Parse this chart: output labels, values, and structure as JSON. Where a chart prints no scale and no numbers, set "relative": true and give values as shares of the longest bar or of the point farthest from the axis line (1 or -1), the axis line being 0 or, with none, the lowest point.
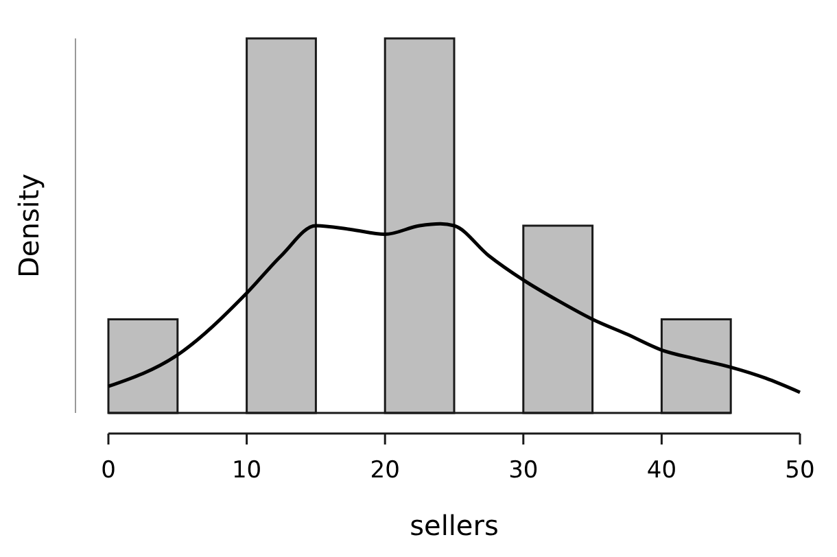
{
  "chart_data": {
    "type": "histogram",
    "xlabel": "sellers",
    "ylabel": "Density",
    "relative": true,
    "bins": [
      0,
      5,
      10,
      15,
      20,
      25,
      30,
      35,
      40,
      45
    ],
    "xlim": [
      0,
      50
    ],
    "xticks": [
      0,
      10,
      20,
      30,
      40,
      50
    ],
    "series": [
      {
        "color": "#bebebe",
        "values": [
          0.25,
          0,
          1,
          0,
          1,
          0,
          0.5,
          0,
          0.25
        ]
      },
      {
        "type": "line",
        "color": "#000000",
        "x": [
          0,
          5,
          10,
          12.5,
          15,
          17.5,
          20,
          22.5,
          24,
          25,
          27.5,
          30,
          32.5,
          35,
          37.5,
          40,
          42.5,
          45,
          47.5,
          50
        ],
        "values": [
          0.071,
          0.155,
          0.32,
          0.42,
          0.5,
          0.49,
          0.477,
          0.5,
          0.505,
          0.5,
          0.42,
          0.355,
          0.3,
          0.25,
          0.21,
          0.168,
          0.144,
          0.122,
          0.093,
          0.055
        ]
      }
    ]
  }
}
